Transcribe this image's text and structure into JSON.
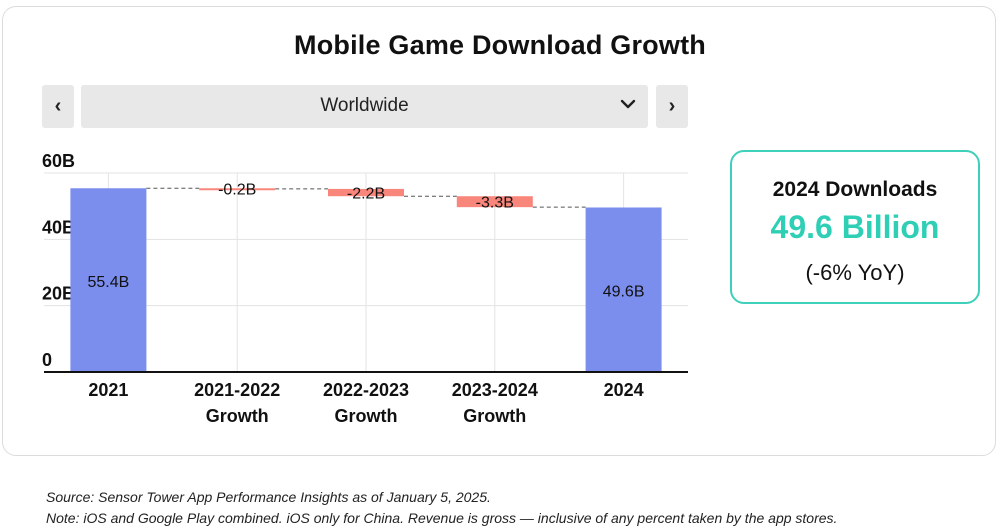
{
  "chart_data": {
    "type": "bar",
    "title": "Mobile Game Download Growth",
    "categories": [
      "2021",
      "2021-2022\nGrowth",
      "2022-2023\nGrowth",
      "2023-2024\nGrowth",
      "2024"
    ],
    "values": [
      55.4,
      -0.2,
      -2.2,
      -3.3,
      49.6
    ],
    "bar_roles": [
      "total",
      "delta",
      "delta",
      "delta",
      "total"
    ],
    "data_labels": [
      "55.4B",
      "-0.2B",
      "-2.2B",
      "-3.3B",
      "49.6B"
    ],
    "y_ticks": [
      0,
      20,
      40,
      60
    ],
    "y_tick_labels": [
      "0",
      "20B",
      "40B",
      "60B"
    ],
    "ylim": [
      0,
      60
    ],
    "xlabel": "",
    "ylabel": "",
    "grid": true,
    "colors": {
      "total": "#7b8ded",
      "delta": "#f8867b"
    }
  },
  "selector": {
    "prev_label": "‹",
    "next_label": "›",
    "region": "Worldwide",
    "chevron": "⌄"
  },
  "kpi": {
    "label": "2024 Downloads",
    "value": "49.6 Billion",
    "change": "(-6% YoY)",
    "accent_color": "#2ecfb4"
  },
  "notes": {
    "source": "Source: Sensor Tower App Performance Insights as of January 5, 2025.",
    "note": "Note: iOS and Google Play combined. iOS only for China. Revenue is gross — inclusive of any percent taken by the app stores."
  }
}
